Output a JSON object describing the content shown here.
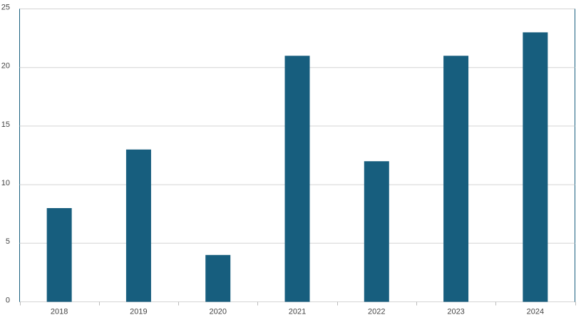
{
  "chart_data": {
    "type": "bar",
    "categories": [
      "2018",
      "2019",
      "2020",
      "2021",
      "2022",
      "2023",
      "2024"
    ],
    "values": [
      8,
      13,
      4,
      21,
      12,
      21,
      23
    ],
    "color": "#175e7e",
    "ylim": [
      0,
      25
    ],
    "yticks": [
      0,
      5,
      10,
      15,
      20,
      25
    ],
    "grid": true
  }
}
